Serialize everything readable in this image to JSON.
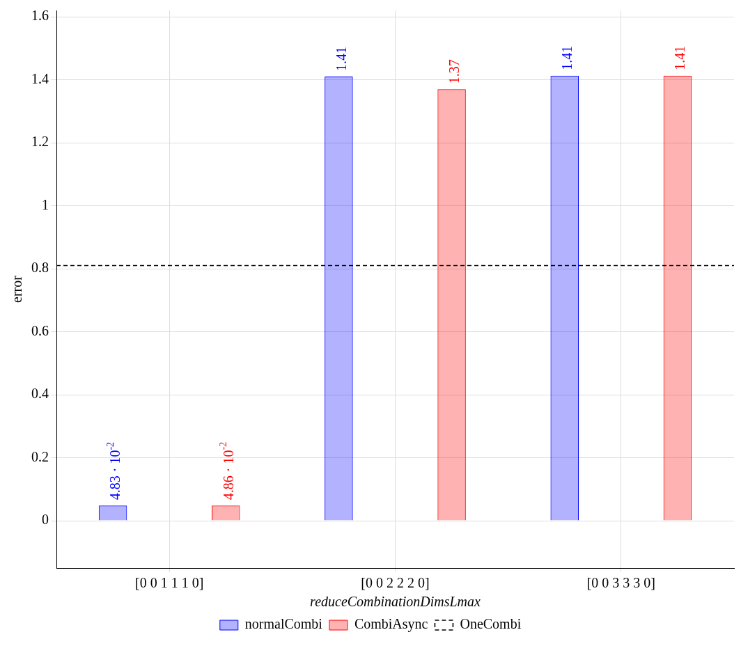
{
  "chart_data": {
    "type": "bar",
    "xlabel": "reduceCombinationDimsLmax",
    "ylabel": "error",
    "categories": [
      "[0 0 1 1 1 0]",
      "[0 0 2 2 2 0]",
      "[0 0 3 3 3 0]"
    ],
    "series": [
      {
        "name": "normalCombi",
        "color": "#0000ff",
        "values": [
          0.0483,
          1.41,
          1.413
        ],
        "value_labels": [
          "4.83 · 10$^{-2}$",
          "1.41",
          "1.41"
        ]
      },
      {
        "name": "CombiAsync",
        "color": "#ff0000",
        "values": [
          0.0486,
          1.37,
          1.413
        ],
        "value_labels": [
          "4.86 · 10$^{-2}$",
          "1.37",
          "1.41"
        ]
      }
    ],
    "ref_lines": [
      {
        "axis": "y",
        "value": 0.81,
        "label": "OneCombi",
        "color": "#000000",
        "line_style": "dashed"
      }
    ],
    "ylim": [
      -0.15,
      1.62
    ],
    "yticks": [
      0,
      0.2,
      0.4,
      0.6,
      0.8,
      1,
      1.2,
      1.4,
      1.6
    ],
    "grid": true,
    "legend": "bottom"
  }
}
